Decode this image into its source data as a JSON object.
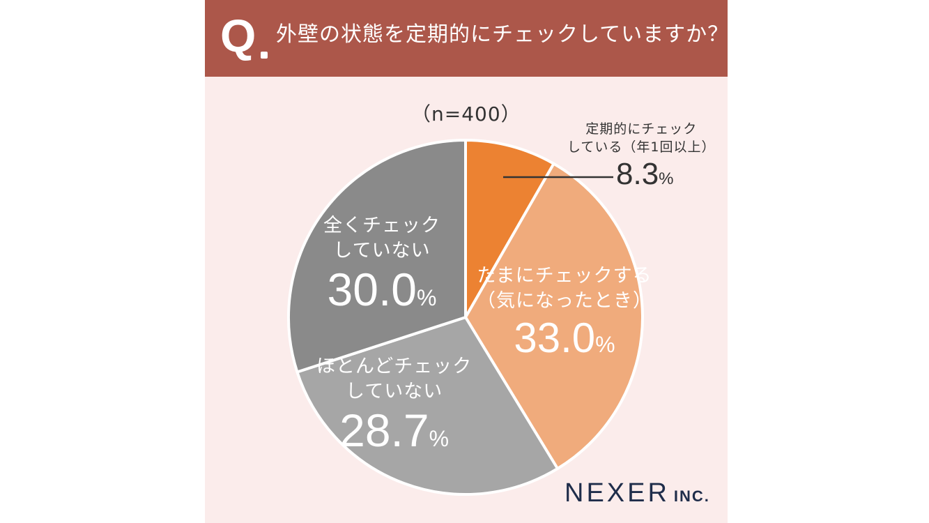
{
  "header": {
    "q_mark": "Q",
    "question": "外壁の状態を定期的にチェックしていますか？"
  },
  "sample_size": "（n=400）",
  "chart_data": {
    "type": "pie",
    "start_angle_deg": 0,
    "direction": "clockwise",
    "slices": [
      {
        "name_lines": [
          "定期的にチェック",
          "している（年1回以上）"
        ],
        "value": 8.3,
        "label": "8.3",
        "color": "#ec8232"
      },
      {
        "name_lines": [
          "たまにチェックする",
          "（気になったとき）"
        ],
        "value": 33.0,
        "label": "33.0",
        "color": "#f0ab7c"
      },
      {
        "name_lines": [
          "ほとんどチェック",
          "していない"
        ],
        "value": 28.7,
        "label": "28.7",
        "color": "#a6a6a6"
      },
      {
        "name_lines": [
          "全くチェック",
          "していない"
        ],
        "value": 30.0,
        "label": "30.0",
        "color": "#8a8a8a"
      }
    ],
    "percent_unit": "%"
  },
  "logo": {
    "main": "NEXER",
    "suffix": "INC."
  }
}
